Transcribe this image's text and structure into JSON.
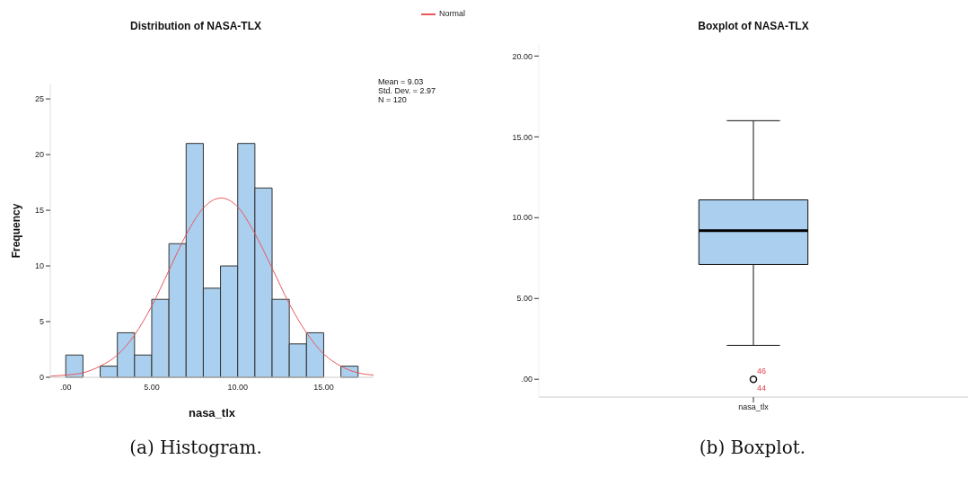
{
  "chart_data": [
    {
      "type": "histogram",
      "title": "Distribution of NASA-TLX",
      "xlabel": "nasa_tlx",
      "ylabel": "Frequency",
      "bins": [
        0,
        1,
        2,
        3,
        4,
        5,
        6,
        7,
        8,
        9,
        10,
        11,
        12,
        13,
        14,
        15,
        16,
        17
      ],
      "values": [
        2,
        0,
        1,
        4,
        2,
        7,
        12,
        21,
        8,
        10,
        21,
        17,
        7,
        3,
        4,
        0,
        1
      ],
      "color": "#abcfee",
      "xlim": [
        -0.9,
        17.9
      ],
      "ylim": [
        0,
        26.3
      ],
      "xticks": [
        {
          "value": 0,
          "label": ".00"
        },
        {
          "value": 5,
          "label": "5.00"
        },
        {
          "value": 10,
          "label": "10.00"
        },
        {
          "value": 15,
          "label": "15.00"
        }
      ],
      "yticks": [
        0,
        5,
        10,
        15,
        20,
        25
      ],
      "grid": false,
      "legend": "top right",
      "series": [
        {
          "type": "line",
          "name": "Normal",
          "color": "#e8585a",
          "x": [
            -0.9,
            0,
            1,
            2,
            3,
            4,
            5,
            6,
            7,
            8,
            9.03,
            10,
            11,
            12,
            13,
            14,
            15,
            16,
            17,
            17.9
          ],
          "values": [
            0.1,
            0.2,
            0.4,
            1,
            2,
            3.8,
            6.4,
            9.6,
            12.8,
            15.2,
            16.1,
            15.3,
            12.9,
            9.8,
            6.6,
            4,
            2.1,
            1,
            0.4,
            0.2
          ]
        }
      ],
      "annotations": [
        "Mean = 9.03",
        "Std. Dev. = 2.97",
        "N = 120",
        "(a) Histogram."
      ]
    },
    {
      "type": "box",
      "title": "Boxplot of NASA-TLX",
      "categories": [
        "nasa_tlx"
      ],
      "color": "#abcfee",
      "boxes": [
        {
          "low": 2.1,
          "q1": 7.1,
          "median": 9.2,
          "q3": 11.1,
          "high": 16,
          "outliers": [
            0
          ]
        }
      ],
      "ylim": [
        -1.1,
        20.8
      ],
      "yticks": [
        {
          "value": 0,
          "label": ".00"
        },
        {
          "value": 5,
          "label": "5.00"
        },
        {
          "value": 10,
          "label": "10.00"
        },
        {
          "value": 15,
          "label": "15.00"
        },
        {
          "value": 20,
          "label": "20.00"
        }
      ],
      "grid": false,
      "annotations": [
        "46",
        "44",
        "(b) Boxplot."
      ]
    }
  ]
}
